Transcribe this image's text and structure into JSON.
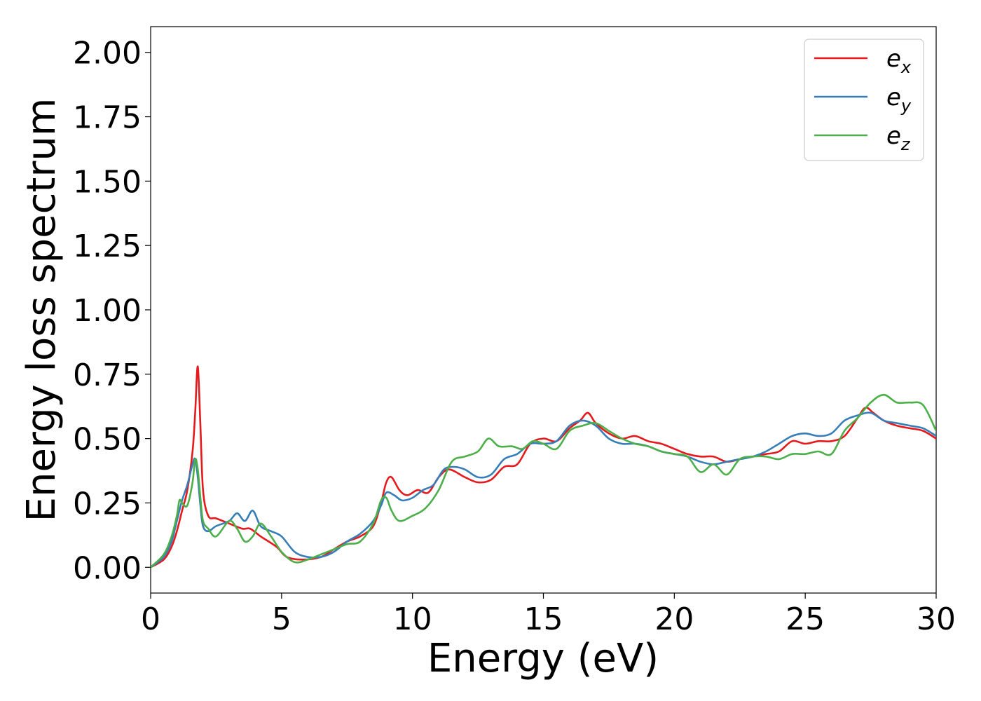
{
  "chart_data": {
    "type": "line",
    "title": "",
    "xlabel": "Energy (eV)",
    "ylabel": "Energy loss spectrum",
    "xlim": [
      0,
      30
    ],
    "ylim": [
      -0.1,
      2.1
    ],
    "x_ticks": [
      0,
      5,
      10,
      15,
      20,
      25,
      30
    ],
    "x_tick_labels": [
      "0",
      "5",
      "10",
      "15",
      "20",
      "25",
      "30"
    ],
    "y_ticks": [
      0.0,
      0.25,
      0.5,
      0.75,
      1.0,
      1.25,
      1.5,
      1.75,
      2.0
    ],
    "y_tick_labels": [
      "0.00",
      "0.25",
      "0.50",
      "0.75",
      "1.00",
      "1.25",
      "1.50",
      "1.75",
      "2.00"
    ],
    "grid": false,
    "legend_position": "top-right",
    "series": [
      {
        "name_base": "e",
        "name_sub": "x",
        "color": "#e41a1c",
        "x": [
          0,
          0.5,
          0.8,
          1.0,
          1.2,
          1.4,
          1.6,
          1.7,
          1.8,
          1.9,
          2.0,
          2.2,
          2.5,
          3.0,
          3.5,
          3.8,
          4.2,
          4.8,
          5.2,
          5.8,
          6.5,
          7.0,
          7.5,
          8.0,
          8.5,
          8.8,
          9.0,
          9.2,
          9.5,
          9.8,
          10.2,
          10.6,
          11.0,
          11.4,
          12.0,
          12.5,
          13.0,
          13.5,
          14.0,
          14.5,
          15.0,
          15.5,
          16.0,
          16.4,
          16.7,
          17.0,
          17.5,
          18.0,
          18.5,
          19.0,
          19.5,
          20.0,
          20.5,
          21.0,
          21.5,
          22.0,
          22.5,
          23.0,
          23.5,
          24.0,
          24.5,
          25.0,
          25.5,
          26.0,
          26.5,
          27.0,
          27.3,
          27.6,
          28.0,
          28.5,
          29.0,
          29.5,
          30.0
        ],
        "y": [
          0.0,
          0.03,
          0.08,
          0.14,
          0.22,
          0.3,
          0.45,
          0.6,
          0.78,
          0.55,
          0.3,
          0.2,
          0.19,
          0.17,
          0.15,
          0.15,
          0.12,
          0.08,
          0.04,
          0.03,
          0.04,
          0.07,
          0.1,
          0.12,
          0.16,
          0.25,
          0.33,
          0.35,
          0.3,
          0.28,
          0.3,
          0.29,
          0.35,
          0.38,
          0.35,
          0.33,
          0.34,
          0.39,
          0.4,
          0.48,
          0.5,
          0.49,
          0.54,
          0.57,
          0.6,
          0.56,
          0.52,
          0.5,
          0.51,
          0.49,
          0.48,
          0.46,
          0.44,
          0.43,
          0.43,
          0.41,
          0.42,
          0.43,
          0.44,
          0.45,
          0.49,
          0.48,
          0.49,
          0.49,
          0.51,
          0.58,
          0.62,
          0.6,
          0.57,
          0.55,
          0.54,
          0.53,
          0.5
        ]
      },
      {
        "name_base": "e",
        "name_sub": "y",
        "color": "#377eb8",
        "x": [
          0,
          0.5,
          0.8,
          1.0,
          1.2,
          1.4,
          1.6,
          1.7,
          1.8,
          1.9,
          2.0,
          2.2,
          2.5,
          3.0,
          3.3,
          3.6,
          3.9,
          4.2,
          4.6,
          5.0,
          5.5,
          6.0,
          6.5,
          7.0,
          7.5,
          8.0,
          8.5,
          8.8,
          9.0,
          9.3,
          9.6,
          10.0,
          10.4,
          10.8,
          11.2,
          11.6,
          12.0,
          12.5,
          13.0,
          13.5,
          14.0,
          14.5,
          15.0,
          15.5,
          16.0,
          16.5,
          17.0,
          17.5,
          18.0,
          18.5,
          19.0,
          19.5,
          20.0,
          20.5,
          21.0,
          21.5,
          22.0,
          22.5,
          23.0,
          23.5,
          24.0,
          24.5,
          25.0,
          25.5,
          26.0,
          26.5,
          27.0,
          27.5,
          28.0,
          28.5,
          29.0,
          29.5,
          30.0
        ],
        "y": [
          0.0,
          0.04,
          0.1,
          0.18,
          0.26,
          0.32,
          0.4,
          0.42,
          0.35,
          0.24,
          0.16,
          0.14,
          0.16,
          0.18,
          0.21,
          0.18,
          0.22,
          0.16,
          0.14,
          0.12,
          0.06,
          0.04,
          0.04,
          0.06,
          0.1,
          0.13,
          0.18,
          0.24,
          0.29,
          0.28,
          0.26,
          0.27,
          0.3,
          0.32,
          0.38,
          0.39,
          0.38,
          0.35,
          0.36,
          0.42,
          0.44,
          0.48,
          0.48,
          0.49,
          0.55,
          0.57,
          0.55,
          0.5,
          0.48,
          0.48,
          0.47,
          0.45,
          0.44,
          0.43,
          0.41,
          0.4,
          0.41,
          0.42,
          0.43,
          0.45,
          0.48,
          0.51,
          0.52,
          0.51,
          0.52,
          0.57,
          0.59,
          0.6,
          0.57,
          0.56,
          0.55,
          0.54,
          0.51
        ]
      },
      {
        "name_base": "e",
        "name_sub": "z",
        "color": "#4daf4a",
        "x": [
          0,
          0.5,
          0.8,
          1.0,
          1.1,
          1.2,
          1.4,
          1.6,
          1.7,
          1.8,
          1.9,
          2.0,
          2.2,
          2.5,
          3.0,
          3.3,
          3.6,
          3.9,
          4.2,
          4.6,
          5.0,
          5.5,
          6.0,
          6.5,
          7.0,
          7.5,
          8.0,
          8.5,
          8.8,
          9.0,
          9.2,
          9.5,
          10.0,
          10.5,
          11.0,
          11.5,
          12.0,
          12.5,
          12.9,
          13.3,
          13.8,
          14.2,
          14.6,
          15.0,
          15.5,
          16.0,
          16.5,
          17.0,
          17.5,
          18.0,
          18.5,
          19.0,
          19.5,
          20.0,
          20.5,
          21.0,
          21.5,
          22.0,
          22.5,
          23.0,
          23.5,
          24.0,
          24.5,
          25.0,
          25.5,
          26.0,
          26.5,
          27.0,
          27.5,
          28.0,
          28.5,
          29.0,
          29.5,
          30.0
        ],
        "y": [
          0.0,
          0.05,
          0.12,
          0.2,
          0.26,
          0.25,
          0.24,
          0.33,
          0.42,
          0.38,
          0.27,
          0.18,
          0.15,
          0.12,
          0.18,
          0.15,
          0.1,
          0.12,
          0.17,
          0.12,
          0.06,
          0.02,
          0.03,
          0.05,
          0.07,
          0.09,
          0.1,
          0.17,
          0.26,
          0.27,
          0.22,
          0.18,
          0.2,
          0.23,
          0.3,
          0.41,
          0.43,
          0.45,
          0.5,
          0.47,
          0.47,
          0.46,
          0.49,
          0.48,
          0.46,
          0.53,
          0.55,
          0.56,
          0.53,
          0.5,
          0.48,
          0.47,
          0.45,
          0.44,
          0.43,
          0.37,
          0.4,
          0.36,
          0.42,
          0.43,
          0.43,
          0.42,
          0.44,
          0.44,
          0.45,
          0.44,
          0.53,
          0.58,
          0.64,
          0.67,
          0.64,
          0.64,
          0.63,
          0.53
        ]
      }
    ]
  }
}
